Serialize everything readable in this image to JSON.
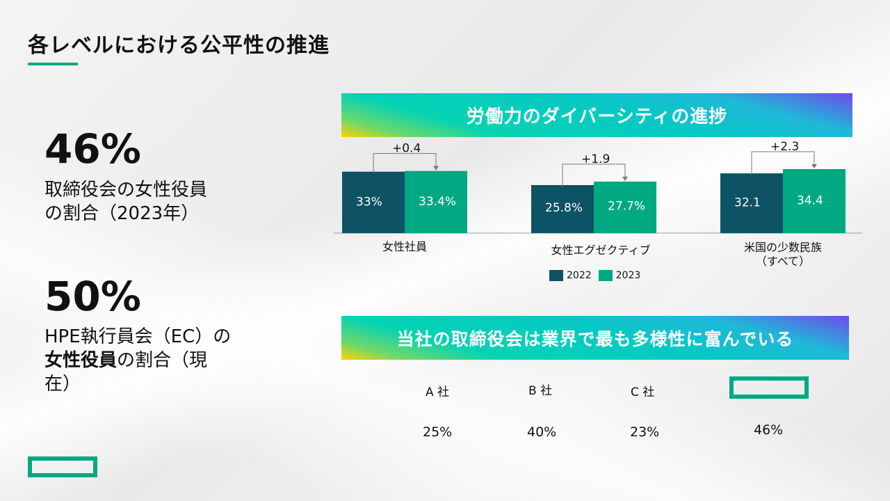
{
  "slide": {
    "title": "各レベルにおける公平性の推進"
  },
  "stats": [
    {
      "value": "46%",
      "desc_line1": "取締役会の女性役員",
      "desc_line2": "の割合（2023年）"
    },
    {
      "value": "50%",
      "desc_line1": "HPE執行員会（EC）の",
      "desc_bold": "女性役員",
      "desc_line2_rest": "の割合（現",
      "desc_line3": "在）"
    }
  ],
  "banner1": {
    "text": "労働力のダイバーシティの進捗"
  },
  "banner2": {
    "text": "当社の取締役会は業界で最も多様性に富んでいる"
  },
  "colors": {
    "accent": "#01a982",
    "bar_2022": "#0d5265",
    "bar_2023": "#01a982"
  },
  "chart_data": {
    "type": "bar",
    "categories": [
      "女性社員",
      "女性エグゼクティブ",
      "米国の少数民族\n（すべて）"
    ],
    "series": [
      {
        "name": "2022",
        "values": [
          33,
          25.8,
          32.1
        ],
        "labels": [
          "33%",
          "25.8%",
          "32.1"
        ]
      },
      {
        "name": "2023",
        "values": [
          33.4,
          27.7,
          34.4
        ],
        "labels": [
          "33.4%",
          "27.7%",
          "34.4"
        ]
      }
    ],
    "annotations": [
      "+0.4",
      "+1.9",
      "+2.3"
    ],
    "legend": {
      "position": "bottom",
      "entries": [
        "2022",
        "2023"
      ]
    }
  },
  "companies": [
    {
      "label": "A 社",
      "value": "25%"
    },
    {
      "label": "B 社",
      "value": "40%"
    },
    {
      "label": "C 社",
      "value": "23%"
    },
    {
      "label": "",
      "value": "46%",
      "logo": "hpe-logo"
    }
  ]
}
